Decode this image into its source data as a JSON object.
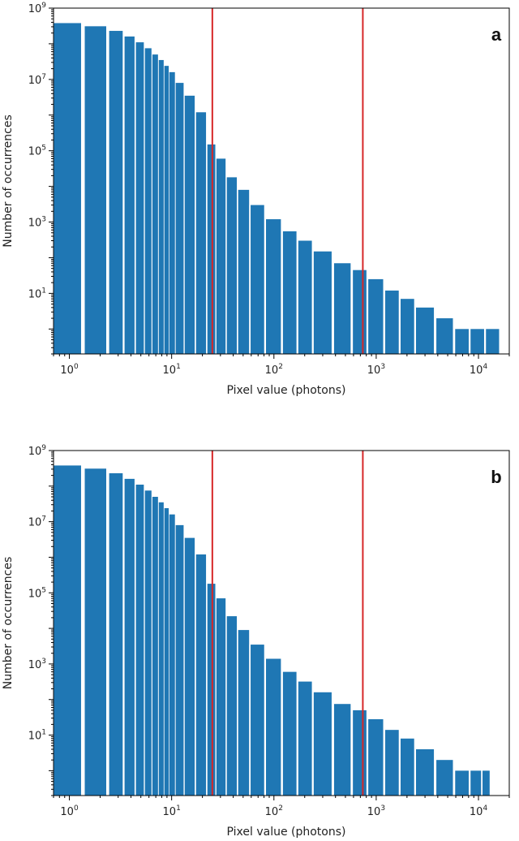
{
  "chart_data": [
    {
      "type": "bar",
      "panel_label": "a",
      "xscale": "log",
      "yscale": "log",
      "xlabel": "Pixel value (photons)",
      "ylabel": "Number of occurrences",
      "xlim": [
        0.7,
        20000
      ],
      "ylim": [
        0.2,
        1000000000
      ],
      "x_ticks": [
        {
          "value": 1,
          "base": "10",
          "exp": "0"
        },
        {
          "value": 10,
          "base": "10",
          "exp": "1"
        },
        {
          "value": 100,
          "base": "10",
          "exp": "2"
        },
        {
          "value": 1000,
          "base": "10",
          "exp": "3"
        },
        {
          "value": 10000,
          "base": "10",
          "exp": "4"
        }
      ],
      "y_ticks": [
        {
          "value": 10,
          "base": "10",
          "exp": "1"
        },
        {
          "value": 1000,
          "base": "10",
          "exp": "3"
        },
        {
          "value": 100000,
          "base": "10",
          "exp": "5"
        },
        {
          "value": 10000000,
          "base": "10",
          "exp": "7"
        },
        {
          "value": 1000000000,
          "base": "10",
          "exp": "9"
        }
      ],
      "grid": false,
      "bar_color": "#1f77b4",
      "thresholds": [
        {
          "x": 25,
          "color": "#d62728"
        },
        {
          "x": 740,
          "color": "#d62728"
        }
      ],
      "x": [
        1,
        2,
        3,
        4,
        5,
        6,
        7,
        8,
        9,
        10,
        12,
        15,
        20,
        25,
        30,
        40,
        50,
        70,
        100,
        150,
        200,
        300,
        500,
        700,
        1000,
        1500,
        2000,
        3000,
        5000,
        7000,
        10000,
        14000
      ],
      "values": [
        380000000,
        310000000,
        230000000,
        160000000,
        110000000,
        75000000,
        50000000,
        35000000,
        24000000,
        16000000,
        8000000,
        3500000,
        1200000,
        150000,
        60000,
        18000,
        8000,
        3000,
        1200,
        550,
        300,
        150,
        70,
        45,
        25,
        12,
        7,
        4,
        2,
        1,
        1,
        1
      ]
    },
    {
      "type": "bar",
      "panel_label": "b",
      "xscale": "log",
      "yscale": "log",
      "xlabel": "Pixel value (photons)",
      "ylabel": "Number of occurrences",
      "xlim": [
        0.7,
        20000
      ],
      "ylim": [
        0.2,
        1000000000
      ],
      "x_ticks": [
        {
          "value": 1,
          "base": "10",
          "exp": "0"
        },
        {
          "value": 10,
          "base": "10",
          "exp": "1"
        },
        {
          "value": 100,
          "base": "10",
          "exp": "2"
        },
        {
          "value": 1000,
          "base": "10",
          "exp": "3"
        },
        {
          "value": 10000,
          "base": "10",
          "exp": "4"
        }
      ],
      "y_ticks": [
        {
          "value": 10,
          "base": "10",
          "exp": "1"
        },
        {
          "value": 1000,
          "base": "10",
          "exp": "3"
        },
        {
          "value": 100000,
          "base": "10",
          "exp": "5"
        },
        {
          "value": 10000000,
          "base": "10",
          "exp": "7"
        },
        {
          "value": 1000000000,
          "base": "10",
          "exp": "9"
        }
      ],
      "grid": false,
      "bar_color": "#1f77b4",
      "thresholds": [
        {
          "x": 25,
          "color": "#d62728"
        },
        {
          "x": 740,
          "color": "#d62728"
        }
      ],
      "x": [
        1,
        2,
        3,
        4,
        5,
        6,
        7,
        8,
        9,
        10,
        12,
        15,
        20,
        25,
        30,
        40,
        50,
        70,
        100,
        150,
        200,
        300,
        500,
        700,
        1000,
        1500,
        2000,
        3000,
        5000,
        7000,
        10000,
        12000
      ],
      "values": [
        380000000,
        310000000,
        230000000,
        160000000,
        110000000,
        75000000,
        50000000,
        35000000,
        24000000,
        16000000,
        8000000,
        3500000,
        1200000,
        180000,
        70000,
        22000,
        9000,
        3500,
        1400,
        600,
        320,
        160,
        75,
        50,
        28,
        14,
        8,
        4,
        2,
        1,
        1,
        1
      ]
    }
  ]
}
